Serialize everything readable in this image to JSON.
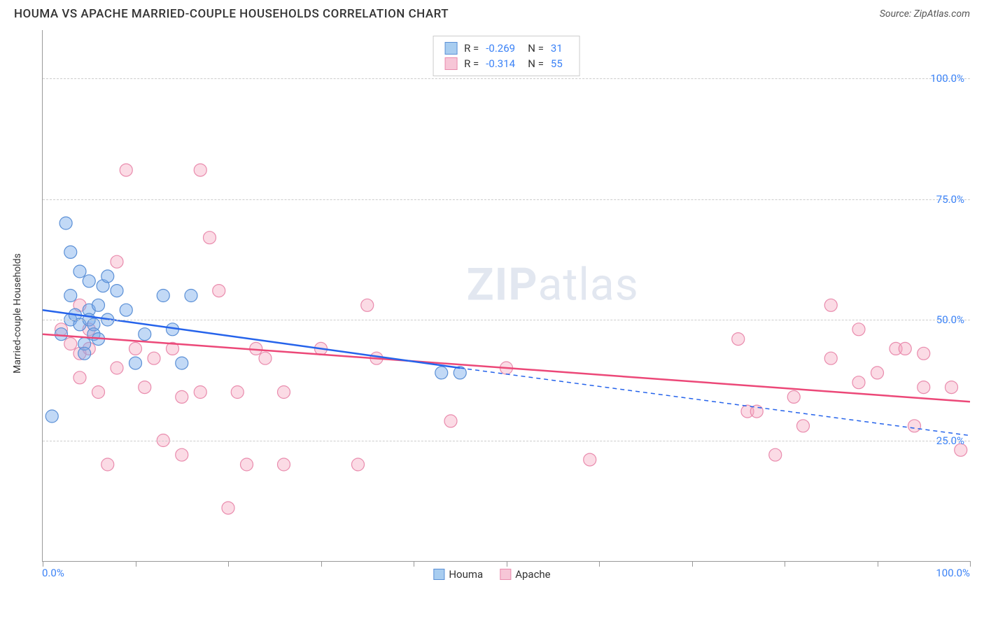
{
  "title": "HOUMA VS APACHE MARRIED-COUPLE HOUSEHOLDS CORRELATION CHART",
  "source": "Source: ZipAtlas.com",
  "y_axis_label": "Married-couple Households",
  "watermark_text_bold": "ZIP",
  "watermark_text_rest": "atlas",
  "chart": {
    "type": "scatter",
    "xlim": [
      0,
      100
    ],
    "ylim": [
      0,
      110
    ],
    "x_tick_positions": [
      0,
      10,
      20,
      30,
      40,
      50,
      60,
      70,
      80,
      90,
      100
    ],
    "x_tick_labels": {
      "0": "0.0%",
      "100": "100.0%"
    },
    "y_gridlines": [
      25,
      50,
      75,
      100
    ],
    "y_tick_labels": {
      "25": "25.0%",
      "50": "50.0%",
      "75": "75.0%",
      "100": "100.0%"
    },
    "background_color": "#ffffff",
    "grid_color": "#cccccc",
    "axis_color": "#999999",
    "tick_label_color": "#3b82f6"
  },
  "series": {
    "houma": {
      "label": "Houma",
      "color_fill": "rgba(120, 170, 235, 0.45)",
      "color_stroke": "#5a8fd6",
      "swatch_fill": "#a8cdf0",
      "swatch_border": "#5a8fd6",
      "marker_radius": 9,
      "trend_solid": {
        "x1": 0,
        "y1": 52,
        "x2": 45,
        "y2": 40
      },
      "trend_dashed": {
        "x1": 45,
        "y1": 40,
        "x2": 100,
        "y2": 26
      },
      "trend_color": "#2563eb",
      "trend_width": 2.5,
      "R": "-0.269",
      "N": "31",
      "points": [
        [
          1,
          30
        ],
        [
          2.5,
          70
        ],
        [
          3,
          55
        ],
        [
          3,
          50
        ],
        [
          3.5,
          51
        ],
        [
          2,
          47
        ],
        [
          4,
          60
        ],
        [
          4,
          49
        ],
        [
          4.5,
          45
        ],
        [
          4.5,
          43
        ],
        [
          5,
          58
        ],
        [
          5,
          52
        ],
        [
          5,
          50
        ],
        [
          5.5,
          49
        ],
        [
          5.5,
          47
        ],
        [
          6,
          53
        ],
        [
          6,
          46
        ],
        [
          6.5,
          57
        ],
        [
          7,
          59
        ],
        [
          7,
          50
        ],
        [
          8,
          56
        ],
        [
          9,
          52
        ],
        [
          10,
          41
        ],
        [
          11,
          47
        ],
        [
          13,
          55
        ],
        [
          14,
          48
        ],
        [
          15,
          41
        ],
        [
          16,
          55
        ],
        [
          43,
          39
        ],
        [
          45,
          39
        ],
        [
          3,
          64
        ]
      ]
    },
    "apache": {
      "label": "Apache",
      "color_fill": "rgba(244, 166, 190, 0.40)",
      "color_stroke": "#e98bad",
      "swatch_fill": "#f7c6d7",
      "swatch_border": "#e98bad",
      "marker_radius": 9,
      "trend_solid": {
        "x1": 0,
        "y1": 47,
        "x2": 100,
        "y2": 33
      },
      "trend_color": "#ec4878",
      "trend_width": 2.5,
      "R": "-0.314",
      "N": "55",
      "points": [
        [
          2,
          48
        ],
        [
          3,
          45
        ],
        [
          4,
          43
        ],
        [
          4,
          38
        ],
        [
          4,
          53
        ],
        [
          5,
          48
        ],
        [
          5,
          44
        ],
        [
          6,
          35
        ],
        [
          7,
          20
        ],
        [
          8,
          40
        ],
        [
          8,
          62
        ],
        [
          9,
          81
        ],
        [
          10,
          44
        ],
        [
          11,
          36
        ],
        [
          12,
          42
        ],
        [
          13,
          25
        ],
        [
          14,
          44
        ],
        [
          15,
          22
        ],
        [
          15,
          34
        ],
        [
          17,
          81
        ],
        [
          17,
          35
        ],
        [
          18,
          67
        ],
        [
          19,
          56
        ],
        [
          20,
          11
        ],
        [
          21,
          35
        ],
        [
          22,
          20
        ],
        [
          23,
          44
        ],
        [
          24,
          42
        ],
        [
          26,
          35
        ],
        [
          26,
          20
        ],
        [
          30,
          44
        ],
        [
          34,
          20
        ],
        [
          35,
          53
        ],
        [
          36,
          42
        ],
        [
          44,
          29
        ],
        [
          50,
          40
        ],
        [
          59,
          21
        ],
        [
          75,
          46
        ],
        [
          76,
          31
        ],
        [
          79,
          22
        ],
        [
          81,
          34
        ],
        [
          82,
          28
        ],
        [
          85,
          42
        ],
        [
          85,
          53
        ],
        [
          88,
          48
        ],
        [
          90,
          39
        ],
        [
          92,
          44
        ],
        [
          93,
          44
        ],
        [
          94,
          28
        ],
        [
          95,
          36
        ],
        [
          98,
          36
        ],
        [
          99,
          23
        ],
        [
          95,
          43
        ],
        [
          88,
          37
        ],
        [
          77,
          31
        ]
      ]
    }
  },
  "stats_box": {
    "rows": [
      {
        "series": "houma",
        "R_label": "R =",
        "N_label": "N ="
      },
      {
        "series": "apache",
        "R_label": "R =",
        "N_label": "N ="
      }
    ]
  },
  "legend": {
    "items": [
      "houma",
      "apache"
    ]
  }
}
